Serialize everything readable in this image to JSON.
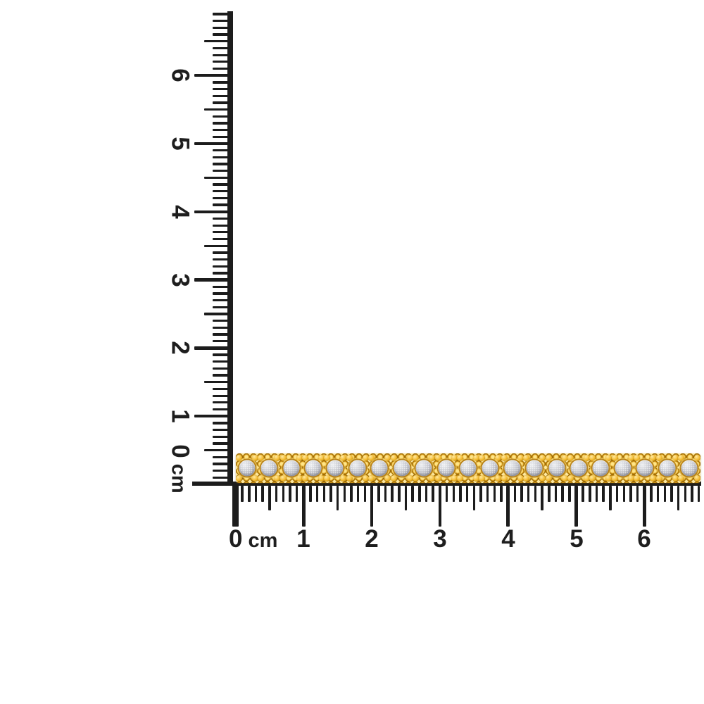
{
  "photo": {
    "background_color": "#ffffff",
    "subject": "Yellow gold tennis bracelet with round frosted white stones laid along centimeter rulers"
  },
  "rulers": {
    "ink_color": "#1c1c1c",
    "vertical": {
      "zero_label": "0",
      "unit": "cm",
      "cm_labels": [
        "1",
        "2",
        "3",
        "4",
        "5",
        "6"
      ]
    },
    "horizontal": {
      "zero_label": "0",
      "unit": "cm",
      "cm_labels": [
        "1",
        "2",
        "3",
        "4",
        "5",
        "6"
      ]
    }
  },
  "bracelet": {
    "stone_count": 21,
    "colors": {
      "gold": "#e8a81c",
      "gold_highlight": "#ffd75e",
      "gold_shadow": "#8a5c04",
      "stone": "#b9bac1",
      "stone_highlight": "#e2e3e7"
    }
  }
}
